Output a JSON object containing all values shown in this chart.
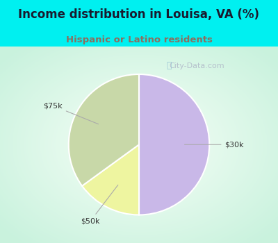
{
  "title": "Income distribution in Louisa, VA (%)",
  "subtitle": "Hispanic or Latino residents",
  "slices": [
    {
      "label": "$30k",
      "value": 50,
      "color": "#c9b8e8"
    },
    {
      "label": "$50k",
      "value": 15,
      "color": "#eef5a0"
    },
    {
      "label": "$75k",
      "value": 35,
      "color": "#c8d8a8"
    }
  ],
  "startangle": 90,
  "bg_color_outer": "#00f0f0",
  "title_color": "#1a1a2e",
  "subtitle_color": "#8a7060",
  "watermark": "City-Data.com",
  "label_color": "#333333",
  "line_color": "#aaaaaa",
  "pie_edge_color": "white",
  "pie_edge_width": 1.5
}
